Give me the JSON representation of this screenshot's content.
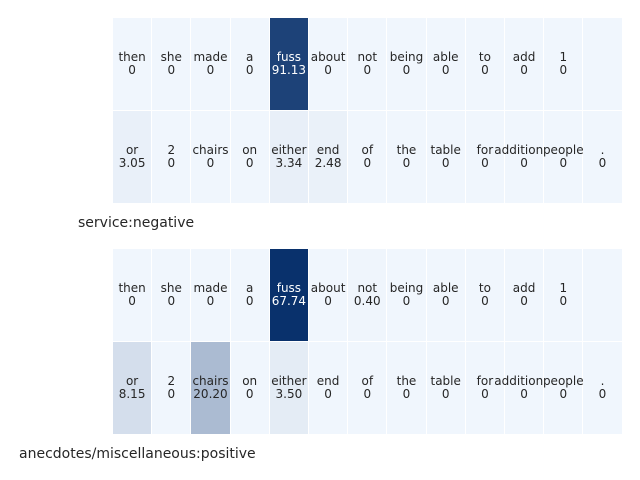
{
  "chart_data": [
    {
      "type": "heatmap",
      "caption": "service:negative",
      "rows": [
        {
          "tokens": [
            "then",
            "she",
            "made",
            "a",
            "fuss",
            "about",
            "not",
            "being",
            "able",
            "to",
            "add",
            "1",
            ""
          ],
          "values": [
            "0",
            "0",
            "0",
            "0",
            "91.13",
            "0",
            "0",
            "0",
            "0",
            "0",
            "0",
            "0",
            ""
          ]
        },
        {
          "tokens": [
            "or",
            "2",
            "chairs",
            "on",
            "either",
            "end",
            "of",
            "the",
            "table",
            "for",
            "additional",
            "people",
            "."
          ],
          "values": [
            "3.05",
            "0",
            "0",
            "0",
            "3.34",
            "2.48",
            "0",
            "0",
            "0",
            "0",
            "0",
            "0",
            "0"
          ]
        }
      ],
      "color_scale": {
        "low": "#f0f6fd",
        "high": "#08306b",
        "max": 100
      }
    },
    {
      "type": "heatmap",
      "caption": "anecdotes/miscellaneous:positive",
      "rows": [
        {
          "tokens": [
            "then",
            "she",
            "made",
            "a",
            "fuss",
            "about",
            "not",
            "being",
            "able",
            "to",
            "add",
            "1",
            ""
          ],
          "values": [
            "0",
            "0",
            "0",
            "0",
            "67.74",
            "0",
            "0.40",
            "0",
            "0",
            "0",
            "0",
            "0",
            ""
          ]
        },
        {
          "tokens": [
            "or",
            "2",
            "chairs",
            "on",
            "either",
            "end",
            "of",
            "the",
            "table",
            "for",
            "additional",
            "people",
            "."
          ],
          "values": [
            "8.15",
            "0",
            "20.20",
            "0",
            "3.50",
            "0",
            "0",
            "0",
            "0",
            "0",
            "0",
            "0",
            "0"
          ]
        }
      ],
      "color_scale": {
        "low": "#f0f6fd",
        "high": "#08306b",
        "max": 68
      }
    }
  ]
}
